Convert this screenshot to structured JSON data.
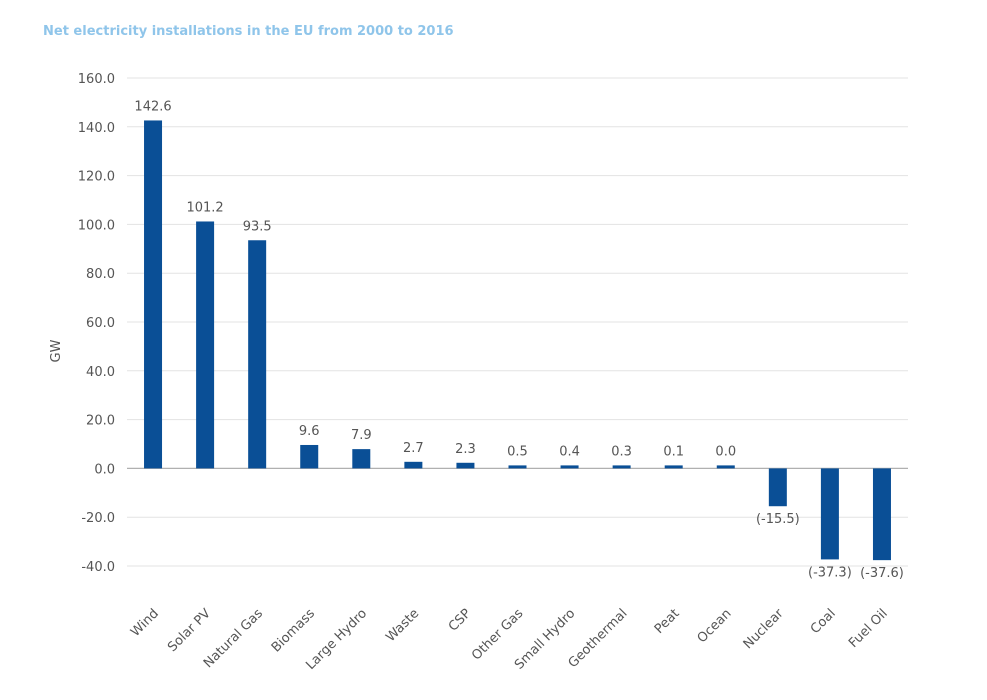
{
  "chart_data": {
    "type": "bar",
    "title": "Net electricity installations in the EU from 2000 to 2016",
    "ylabel": "GW",
    "xlabel": "",
    "ylim": [
      -40,
      160
    ],
    "yticks": [
      "160.0",
      "140.0",
      "120.0",
      "100.0",
      "80.0",
      "60.0",
      "40.0",
      "20.0",
      "0.0",
      "-20.0",
      "-40.0"
    ],
    "ytick_values": [
      160,
      140,
      120,
      100,
      80,
      60,
      40,
      20,
      0,
      -20,
      -40
    ],
    "grid": true,
    "bar_color": "#0a4f96",
    "categories": [
      "Wind",
      "Solar PV",
      "Natural Gas",
      "Biomass",
      "Large Hydro",
      "Waste",
      "CSP",
      "Other Gas",
      "Small Hydro",
      "Geothermal",
      "Peat",
      "Ocean",
      "Nuclear",
      "Coal",
      "Fuel Oil"
    ],
    "values": [
      142.6,
      101.2,
      93.5,
      9.6,
      7.9,
      2.7,
      2.3,
      0.5,
      0.4,
      0.3,
      0.1,
      0.0,
      -15.5,
      -37.3,
      -37.6
    ],
    "data_labels": [
      "142.6",
      "101.2",
      "93.5",
      "9.6",
      "7.9",
      "2.7",
      "2.3",
      "0.5",
      "0.4",
      "0.3",
      "0.1",
      "0.0",
      "(-15.5)",
      "(-37.3)",
      "(-37.6)"
    ]
  }
}
